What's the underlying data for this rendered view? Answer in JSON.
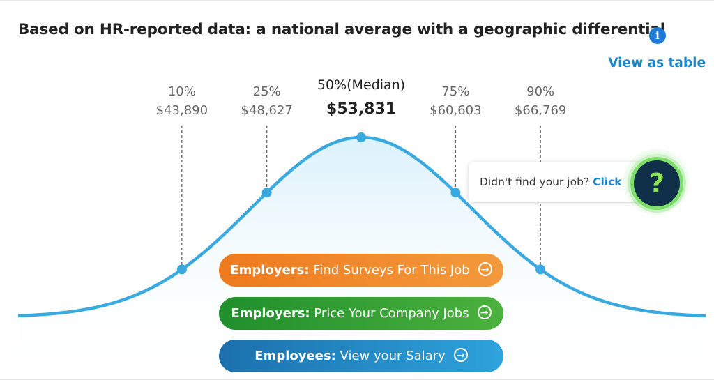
{
  "title": "Based on HR-reported data: a national average with a geographic differential",
  "info_icon": "info-icon",
  "view_as_table": "View as table",
  "chart_data": {
    "type": "area",
    "distribution": "normal",
    "points": [
      {
        "percentile": "10%",
        "value": "$43,890",
        "amount": 43890
      },
      {
        "percentile": "25%",
        "value": "$48,627",
        "amount": 48627
      },
      {
        "percentile": "50%(Median)",
        "value": "$53,831",
        "amount": 53831
      },
      {
        "percentile": "75%",
        "value": "$60,603",
        "amount": 60603
      },
      {
        "percentile": "90%",
        "value": "$66,769",
        "amount": 66769
      }
    ],
    "colors": {
      "curve": "#3aa9e0",
      "fill_top": "#dff2fb",
      "guides": "#666666"
    }
  },
  "tooltip": {
    "text": "Didn't find your job?",
    "link": "Click"
  },
  "help_icon": "question-mark-icon",
  "buttons": [
    {
      "bold": "Employers:",
      "text": " Find Surveys For This Job",
      "color": "#ee7a1e"
    },
    {
      "bold": "Employers:",
      "text": " Price Your Company Jobs",
      "color": "#1f8e2c"
    },
    {
      "bold": "Employees:",
      "text": " View your Salary",
      "color": "#1b70ad"
    }
  ]
}
